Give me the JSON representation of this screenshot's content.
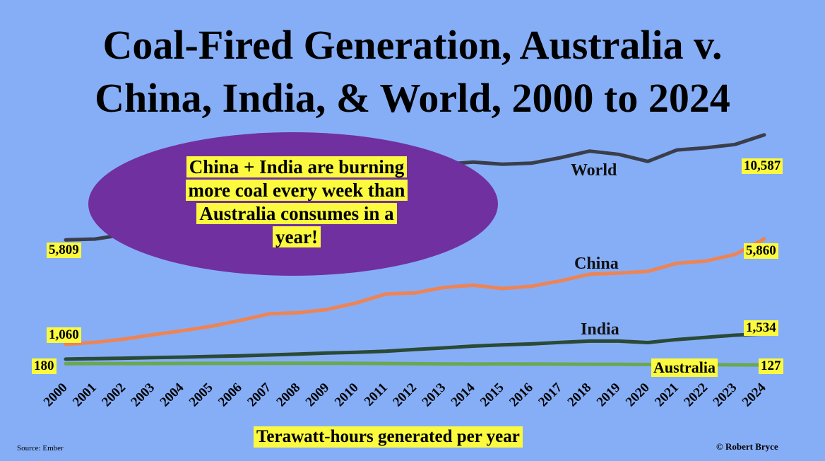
{
  "title_lines": [
    "Coal-Fired Generation, Australia v.",
    "China, India, & World, 2000 to 2024"
  ],
  "callout": {
    "lines": [
      "China + India are burning",
      "more coal every week than",
      "Australia consumes in a",
      "year!"
    ],
    "fill_color": "#7030a0",
    "highlight_color": "#fbfa3e"
  },
  "chart_data": {
    "type": "line",
    "title": "Coal-Fired Generation, Australia v. China, India, & World, 2000 to 2024",
    "xlabel": "Terawatt-hours generated per year",
    "ylabel": "",
    "x": [
      "2000",
      "2001",
      "2002",
      "2003",
      "2004",
      "2005",
      "2006",
      "2007",
      "2008",
      "2009",
      "2010",
      "2011",
      "2012",
      "2013",
      "2014",
      "2015",
      "2016",
      "2017",
      "2018",
      "2019",
      "2020",
      "2021",
      "2022",
      "2023",
      "2024"
    ],
    "series": [
      {
        "name": "World",
        "color": "#3a3e4a",
        "values": [
          5809,
          5850,
          6050,
          6350,
          6750,
          7100,
          7450,
          7800,
          7900,
          7800,
          8450,
          8900,
          9000,
          9250,
          9350,
          9250,
          9300,
          9550,
          9850,
          9700,
          9380,
          9900,
          10000,
          10150,
          10587
        ],
        "start_label": "5,809",
        "end_label": "10,587"
      },
      {
        "name": "China",
        "color": "#ec8456",
        "values": [
          1060,
          1150,
          1300,
          1500,
          1680,
          1880,
          2150,
          2450,
          2500,
          2650,
          2950,
          3350,
          3400,
          3650,
          3750,
          3600,
          3700,
          3950,
          4250,
          4300,
          4380,
          4750,
          4850,
          5150,
          5860
        ],
        "start_label": "1,060",
        "end_label": "5,860"
      },
      {
        "name": "India",
        "color": "#2a4a36",
        "values": [
          390,
          410,
          430,
          460,
          480,
          510,
          540,
          580,
          620,
          670,
          700,
          750,
          830,
          900,
          980,
          1040,
          1080,
          1150,
          1210,
          1210,
          1140,
          1280,
          1380,
          1480,
          1534
        ],
        "end_label": "1,534"
      },
      {
        "name": "Australia",
        "color": "#6aa84f",
        "values": [
          180,
          185,
          188,
          190,
          192,
          195,
          197,
          200,
          200,
          198,
          195,
          190,
          180,
          172,
          165,
          170,
          165,
          160,
          155,
          152,
          145,
          140,
          135,
          130,
          127
        ],
        "start_label": "180",
        "end_label": "127"
      }
    ],
    "grid": false,
    "legend": "inline labels"
  },
  "footer": {
    "source": "Source: Ember",
    "credit": "© Robert Bryce"
  },
  "colors": {
    "background": "#86aef7",
    "label_highlight": "#fbfa3e"
  }
}
